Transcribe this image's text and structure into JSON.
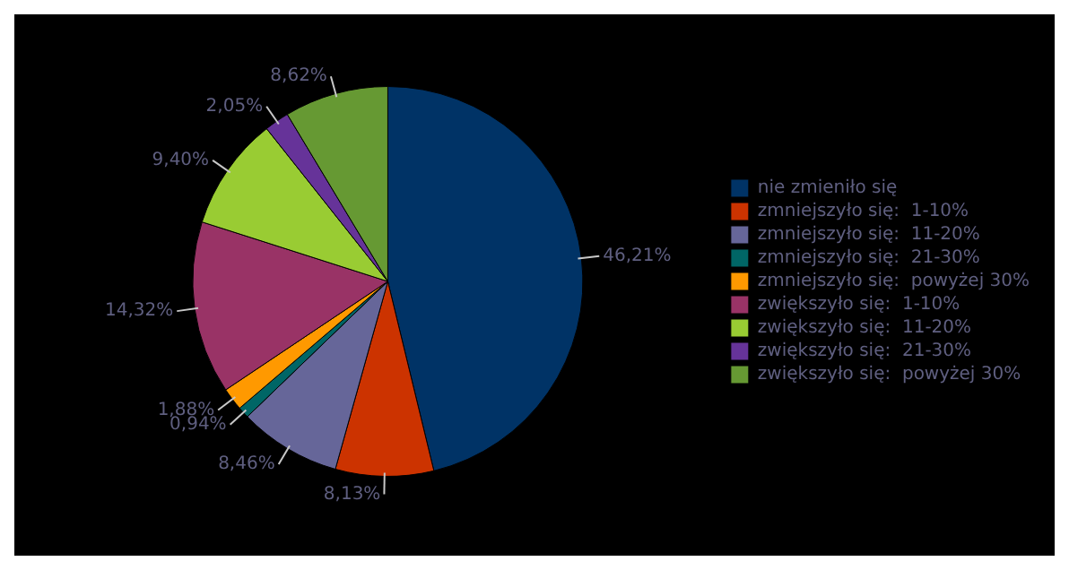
{
  "chart_data": {
    "type": "pie",
    "categories": [
      "nie zmieniło się",
      "zmniejszyło się:  1-10%",
      "zmniejszyło się:  11-20%",
      "zmniejszyło się:  21-30%",
      "zmniejszyło się:  powyżej 30%",
      "zwiększyło się:  1-10%",
      "zwiększyło się:  11-20%",
      "zwiększyło się:  21-30%",
      "zwiększyło się:  powyżej 30%"
    ],
    "values": [
      46.21,
      8.13,
      8.46,
      0.94,
      1.88,
      14.32,
      9.4,
      2.05,
      8.62
    ],
    "value_labels": [
      "46,21%",
      "8,13%",
      "8,46%",
      "0,94%",
      "1,88%",
      "14,32%",
      "9,40%",
      "2,05%",
      "8,62%"
    ],
    "colors": [
      "#003366",
      "#cc3300",
      "#666699",
      "#006666",
      "#ff9900",
      "#993366",
      "#99cc33",
      "#663399",
      "#669933"
    ],
    "legend": "right"
  }
}
